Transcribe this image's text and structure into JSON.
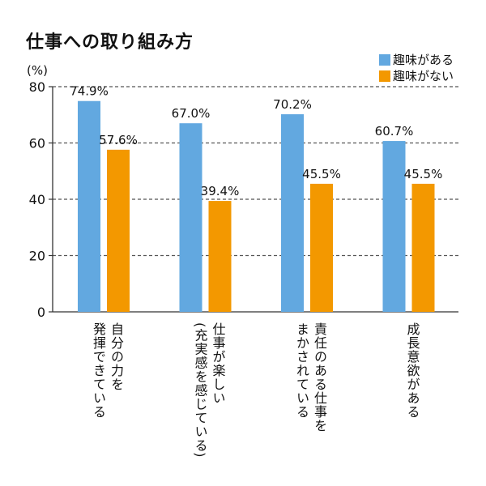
{
  "chart_data": {
    "type": "bar",
    "title": "仕事への取り組み方",
    "ylabel": "(%)",
    "ylim": [
      0,
      80
    ],
    "yticks": [
      0,
      20,
      40,
      60,
      80
    ],
    "grid": true,
    "legend_position": "top-right",
    "categories": [
      "自分の力を\n発揮できている",
      "仕事が楽しい\n(充実感を感じている)",
      "責任のある仕事を\nまかされている",
      "成長意欲がある"
    ],
    "series": [
      {
        "name": "趣味がある",
        "color": "#62a8e0",
        "values": [
          74.9,
          67.0,
          70.2,
          60.7
        ],
        "labels": [
          "74.9%",
          "67.0%",
          "70.2%",
          "60.7%"
        ]
      },
      {
        "name": "趣味がない",
        "color": "#f39800",
        "values": [
          57.6,
          39.4,
          45.5,
          45.5
        ],
        "labels": [
          "57.6%",
          "39.4%",
          "45.5%",
          "45.5%"
        ]
      }
    ]
  }
}
